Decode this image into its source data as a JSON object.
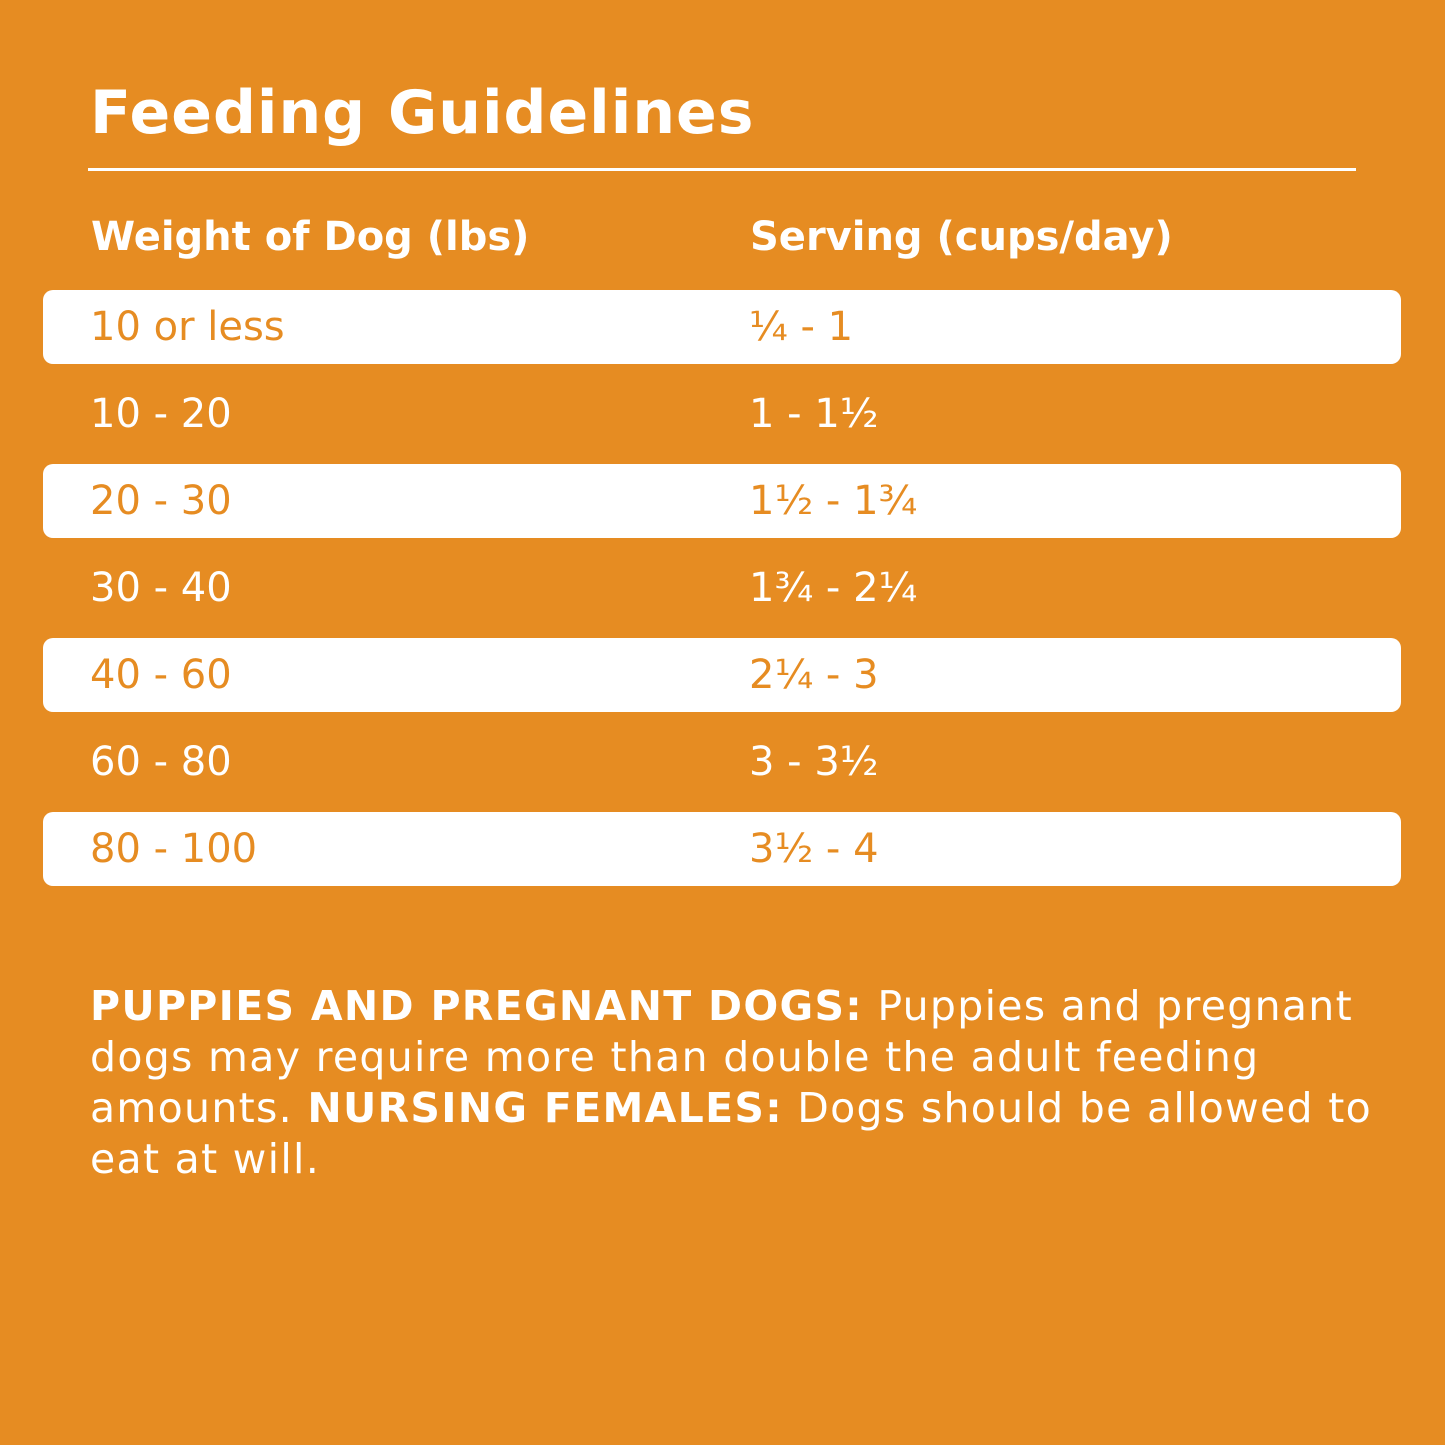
{
  "title": "Feeding Guidelines",
  "colors": {
    "background": "#e68c22",
    "row_highlight": "#ffffff"
  },
  "table": {
    "headers": [
      "Weight of Dog (lbs)",
      "Serving (cups/day)"
    ],
    "rows": [
      {
        "weight": "10 or less",
        "serving": "¼ - 1"
      },
      {
        "weight": "10 - 20",
        "serving": "1 - 1½"
      },
      {
        "weight": "20 - 30",
        "serving": "1½ - 1¾"
      },
      {
        "weight": "30 - 40",
        "serving": "1¾ - 2¼"
      },
      {
        "weight": "40 - 60",
        "serving": "2¼ - 3"
      },
      {
        "weight": "60 - 80",
        "serving": "3 - 3½"
      },
      {
        "weight": "80 - 100",
        "serving": "3½ - 4"
      }
    ]
  },
  "note": {
    "label1": "PUPPIES AND PREGNANT DOGS:",
    "text1": " Puppies and pregnant dogs may require more than double the adult feeding amounts. ",
    "label2": "NURSING FEMALES:",
    "text2": " Dogs should be allowed to eat at will."
  }
}
